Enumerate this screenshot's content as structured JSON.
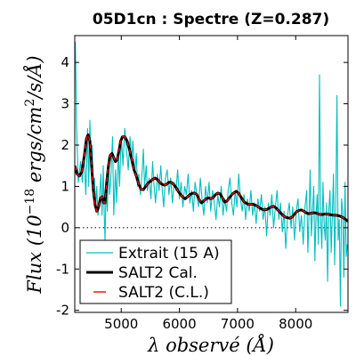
{
  "chart_data": {
    "type": "line",
    "title": "05D1cn : Spectre (Z=0.287)",
    "xlabel": "λ observé (Å)",
    "ylabel": "Flux (10^-18 ergs/cm²/s/Å)",
    "xlim": [
      4200,
      8900
    ],
    "ylim": [
      -2.05,
      4.65
    ],
    "x_ticks": [
      5000,
      6000,
      7000,
      8000
    ],
    "y_ticks": [
      -2,
      -1,
      0,
      1,
      2,
      3,
      4
    ],
    "zero_line": "dotted",
    "legend_position": "bottom-left",
    "colors": {
      "extracted": "#00bfbf",
      "cal": "#000000",
      "cl": "#ff0000"
    },
    "series": [
      {
        "name": "Extrait (15 A)",
        "style": "noisy-line",
        "points": [
          [
            4210,
            4.5
          ],
          [
            4230,
            2.5
          ],
          [
            4260,
            1.1
          ],
          [
            4300,
            1.6
          ],
          [
            4330,
            1.1
          ],
          [
            4360,
            1.8
          ],
          [
            4390,
            0.8
          ],
          [
            4420,
            2.4
          ],
          [
            4440,
            1.0
          ],
          [
            4460,
            2.6
          ],
          [
            4480,
            1.5
          ],
          [
            4500,
            2.0
          ],
          [
            4520,
            0.9
          ],
          [
            4540,
            1.2
          ],
          [
            4560,
            0.5
          ],
          [
            4580,
            1.0
          ],
          [
            4600,
            0.3
          ],
          [
            4620,
            0.6
          ],
          [
            4650,
            1.3
          ],
          [
            4670,
            0.3
          ],
          [
            4690,
            1.5
          ],
          [
            4710,
            0.2
          ],
          [
            4720,
            -0.3
          ],
          [
            4740,
            1.0
          ],
          [
            4760,
            0.4
          ],
          [
            4780,
            1.7
          ],
          [
            4800,
            0.8
          ],
          [
            4820,
            1.2
          ],
          [
            4850,
            2.2
          ],
          [
            4870,
            0.3
          ],
          [
            4900,
            1.4
          ],
          [
            4920,
            0.6
          ],
          [
            4950,
            1.9
          ],
          [
            4970,
            1.0
          ],
          [
            5000,
            2.2
          ],
          [
            5030,
            1.5
          ],
          [
            5060,
            2.4
          ],
          [
            5090,
            1.9
          ],
          [
            5120,
            1.4
          ],
          [
            5150,
            2.2
          ],
          [
            5180,
            1.6
          ],
          [
            5200,
            2.1
          ],
          [
            5230,
            1.3
          ],
          [
            5260,
            1.8
          ],
          [
            5280,
            1.0
          ],
          [
            5300,
            1.3
          ],
          [
            5330,
            0.8
          ],
          [
            5360,
            1.4
          ],
          [
            5380,
            1.9
          ],
          [
            5400,
            1.0
          ],
          [
            5430,
            1.5
          ],
          [
            5450,
            0.9
          ],
          [
            5480,
            1.2
          ],
          [
            5510,
            0.7
          ],
          [
            5540,
            1.6
          ],
          [
            5560,
            1.1
          ],
          [
            5590,
            0.6
          ],
          [
            5620,
            1.3
          ],
          [
            5650,
            0.9
          ],
          [
            5680,
            1.5
          ],
          [
            5700,
            1.0
          ],
          [
            5730,
            0.5
          ],
          [
            5760,
            1.2
          ],
          [
            5790,
            1.4
          ],
          [
            5820,
            0.8
          ],
          [
            5850,
            1.2
          ],
          [
            5880,
            0.6
          ],
          [
            5910,
            1.1
          ],
          [
            5940,
            0.9
          ],
          [
            5970,
            1.4
          ],
          [
            6000,
            0.7
          ],
          [
            6030,
            1.1
          ],
          [
            6060,
            0.5
          ],
          [
            6090,
            1.0
          ],
          [
            6120,
            0.8
          ],
          [
            6150,
            1.3
          ],
          [
            6180,
            0.6
          ],
          [
            6210,
            0.9
          ],
          [
            6240,
            0.4
          ],
          [
            6270,
            1.1
          ],
          [
            6300,
            0.8
          ],
          [
            6330,
            0.5
          ],
          [
            6360,
            1.2
          ],
          [
            6390,
            0.7
          ],
          [
            6420,
            0.3
          ],
          [
            6450,
            1.0
          ],
          [
            6480,
            0.6
          ],
          [
            6510,
            1.1
          ],
          [
            6540,
            0.4
          ],
          [
            6570,
            0.9
          ],
          [
            6600,
            0.6
          ],
          [
            6630,
            0.2
          ],
          [
            6660,
            0.8
          ],
          [
            6690,
            0.5
          ],
          [
            6720,
            1.0
          ],
          [
            6750,
            0.3
          ],
          [
            6780,
            0.7
          ],
          [
            6810,
            0.4
          ],
          [
            6840,
            0.9
          ],
          [
            6870,
            1.2
          ],
          [
            6900,
            0.6
          ],
          [
            6930,
            0.3
          ],
          [
            6960,
            0.9
          ],
          [
            6990,
            0.5
          ],
          [
            7020,
            1.3
          ],
          [
            7050,
            0.7
          ],
          [
            7080,
            0.4
          ],
          [
            7110,
            0.8
          ],
          [
            7140,
            0.2
          ],
          [
            7170,
            0.7
          ],
          [
            7200,
            0.4
          ],
          [
            7230,
            0.9
          ],
          [
            7260,
            0.3
          ],
          [
            7290,
            0.6
          ],
          [
            7320,
            0.1
          ],
          [
            7350,
            0.7
          ],
          [
            7380,
            0.4
          ],
          [
            7410,
            0.8
          ],
          [
            7440,
            0.2
          ],
          [
            7470,
            0.5
          ],
          [
            7500,
            -0.2
          ],
          [
            7530,
            0.6
          ],
          [
            7560,
            0.3
          ],
          [
            7590,
            0.8
          ],
          [
            7620,
            0.0
          ],
          [
            7650,
            0.5
          ],
          [
            7680,
            0.9
          ],
          [
            7710,
            0.2
          ],
          [
            7740,
            0.6
          ],
          [
            7770,
            -0.1
          ],
          [
            7800,
            0.4
          ],
          [
            7830,
            -0.5
          ],
          [
            7860,
            0.3
          ],
          [
            7890,
            0.6
          ],
          [
            7920,
            0.0
          ],
          [
            7950,
            0.5
          ],
          [
            7980,
            -0.3
          ],
          [
            8010,
            0.4
          ],
          [
            8040,
            0.7
          ],
          [
            8070,
            -0.1
          ],
          [
            8100,
            0.3
          ],
          [
            8130,
            -0.4
          ],
          [
            8160,
            0.5
          ],
          [
            8190,
            0.9
          ],
          [
            8210,
            -0.6
          ],
          [
            8230,
            0.3
          ],
          [
            8250,
            1.4
          ],
          [
            8270,
            -0.2
          ],
          [
            8290,
            0.4
          ],
          [
            8310,
            1.0
          ],
          [
            8330,
            -0.8
          ],
          [
            8350,
            0.3
          ],
          [
            8370,
            0.8
          ],
          [
            8390,
            -0.4
          ],
          [
            8410,
            3.7
          ],
          [
            8430,
            0.2
          ],
          [
            8450,
            -0.5
          ],
          [
            8470,
            1.1
          ],
          [
            8490,
            0.1
          ],
          [
            8510,
            -0.3
          ],
          [
            8530,
            0.6
          ],
          [
            8550,
            -1.3
          ],
          [
            8570,
            0.4
          ],
          [
            8590,
            0.9
          ],
          [
            8610,
            -0.6
          ],
          [
            8630,
            0.3
          ],
          [
            8650,
            1.3
          ],
          [
            8670,
            -0.9
          ],
          [
            8690,
            0.5
          ],
          [
            8710,
            3.2
          ],
          [
            8730,
            -0.3
          ],
          [
            8750,
            0.2
          ],
          [
            8770,
            -1.9
          ],
          [
            8790,
            0.7
          ],
          [
            8810,
            0.4
          ],
          [
            8830,
            -1.2
          ],
          [
            8850,
            1.1
          ],
          [
            8870,
            -0.7
          ],
          [
            8890,
            -0.4
          ]
        ]
      },
      {
        "name": "SALT2 Cal.",
        "style": "thick-line",
        "points": [
          [
            4200,
            1.5
          ],
          [
            4240,
            1.3
          ],
          [
            4280,
            1.25
          ],
          [
            4320,
            1.35
          ],
          [
            4360,
            1.7
          ],
          [
            4400,
            2.15
          ],
          [
            4430,
            2.25
          ],
          [
            4460,
            2.1
          ],
          [
            4490,
            1.5
          ],
          [
            4520,
            0.9
          ],
          [
            4550,
            0.55
          ],
          [
            4580,
            0.4
          ],
          [
            4610,
            0.5
          ],
          [
            4640,
            0.7
          ],
          [
            4670,
            0.75
          ],
          [
            4700,
            0.6
          ],
          [
            4720,
            0.6
          ],
          [
            4750,
            1.1
          ],
          [
            4780,
            1.5
          ],
          [
            4810,
            1.75
          ],
          [
            4840,
            1.8
          ],
          [
            4870,
            1.7
          ],
          [
            4900,
            1.6
          ],
          [
            4930,
            1.65
          ],
          [
            4960,
            1.85
          ],
          [
            4990,
            2.1
          ],
          [
            5020,
            2.2
          ],
          [
            5060,
            2.2
          ],
          [
            5100,
            2.1
          ],
          [
            5140,
            1.9
          ],
          [
            5180,
            1.65
          ],
          [
            5220,
            1.4
          ],
          [
            5260,
            1.25
          ],
          [
            5300,
            1.05
          ],
          [
            5340,
            0.93
          ],
          [
            5380,
            0.92
          ],
          [
            5420,
            1.0
          ],
          [
            5460,
            1.08
          ],
          [
            5500,
            1.12
          ],
          [
            5540,
            1.17
          ],
          [
            5580,
            1.2
          ],
          [
            5620,
            1.17
          ],
          [
            5660,
            1.1
          ],
          [
            5700,
            1.05
          ],
          [
            5740,
            1.03
          ],
          [
            5780,
            1.05
          ],
          [
            5820,
            1.1
          ],
          [
            5860,
            1.1
          ],
          [
            5900,
            1.05
          ],
          [
            5940,
            0.98
          ],
          [
            5980,
            0.88
          ],
          [
            6020,
            0.8
          ],
          [
            6060,
            0.74
          ],
          [
            6100,
            0.7
          ],
          [
            6140,
            0.75
          ],
          [
            6180,
            0.8
          ],
          [
            6220,
            0.83
          ],
          [
            6260,
            0.84
          ],
          [
            6300,
            0.8
          ],
          [
            6340,
            0.68
          ],
          [
            6380,
            0.6
          ],
          [
            6420,
            0.65
          ],
          [
            6460,
            0.7
          ],
          [
            6500,
            0.72
          ],
          [
            6540,
            0.7
          ],
          [
            6580,
            0.73
          ],
          [
            6620,
            0.8
          ],
          [
            6660,
            0.84
          ],
          [
            6700,
            0.82
          ],
          [
            6740,
            0.72
          ],
          [
            6780,
            0.62
          ],
          [
            6820,
            0.65
          ],
          [
            6860,
            0.72
          ],
          [
            6900,
            0.8
          ],
          [
            6940,
            0.85
          ],
          [
            6980,
            0.88
          ],
          [
            7020,
            0.83
          ],
          [
            7060,
            0.74
          ],
          [
            7100,
            0.65
          ],
          [
            7140,
            0.6
          ],
          [
            7180,
            0.57
          ],
          [
            7220,
            0.56
          ],
          [
            7260,
            0.57
          ],
          [
            7300,
            0.55
          ],
          [
            7340,
            0.52
          ],
          [
            7380,
            0.48
          ],
          [
            7420,
            0.45
          ],
          [
            7460,
            0.43
          ],
          [
            7500,
            0.44
          ],
          [
            7540,
            0.47
          ],
          [
            7580,
            0.5
          ],
          [
            7620,
            0.52
          ],
          [
            7660,
            0.48
          ],
          [
            7700,
            0.42
          ],
          [
            7740,
            0.36
          ],
          [
            7780,
            0.3
          ],
          [
            7820,
            0.26
          ],
          [
            7860,
            0.24
          ],
          [
            7900,
            0.23
          ],
          [
            7940,
            0.26
          ],
          [
            7980,
            0.33
          ],
          [
            8020,
            0.39
          ],
          [
            8060,
            0.42
          ],
          [
            8100,
            0.43
          ],
          [
            8140,
            0.4
          ],
          [
            8180,
            0.36
          ],
          [
            8220,
            0.34
          ],
          [
            8260,
            0.35
          ],
          [
            8300,
            0.36
          ],
          [
            8340,
            0.36
          ],
          [
            8380,
            0.34
          ],
          [
            8420,
            0.32
          ],
          [
            8460,
            0.32
          ],
          [
            8500,
            0.33
          ],
          [
            8540,
            0.33
          ],
          [
            8580,
            0.32
          ],
          [
            8620,
            0.31
          ],
          [
            8660,
            0.3
          ],
          [
            8700,
            0.3
          ],
          [
            8740,
            0.29
          ],
          [
            8780,
            0.27
          ],
          [
            8820,
            0.24
          ],
          [
            8860,
            0.2
          ],
          [
            8900,
            0.15
          ]
        ]
      },
      {
        "name": "SALT2 (C.L.)",
        "style": "dashed-line",
        "same_as": "SALT2 Cal."
      }
    ]
  }
}
